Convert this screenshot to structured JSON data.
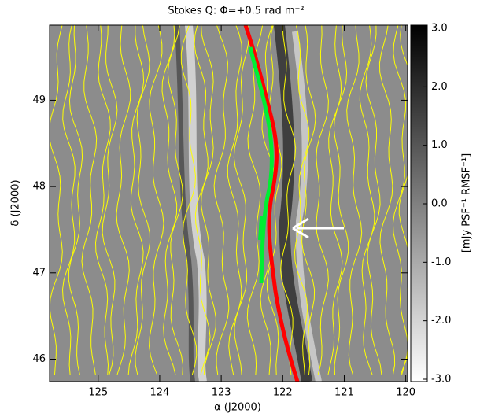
{
  "chart_data": {
    "type": "image",
    "title": "Stokes Q: Φ=+0.5 rad m⁻²",
    "xlabel": "α (J2000)",
    "ylabel": "δ (J2000)",
    "xlim": [
      125.79,
      119.97
    ],
    "xticks": [
      125,
      124,
      123,
      122,
      121,
      120
    ],
    "ylim": [
      45.74,
      49.87
    ],
    "yticks": [
      46,
      47,
      48,
      49
    ],
    "colorbar": {
      "label": "[mJy PSF⁻¹ RMSF⁻¹]",
      "zlim": [
        -3,
        3
      ],
      "zticks": [
        {
          "value": 3,
          "label": "3.0"
        },
        {
          "value": 2,
          "label": "2.0"
        },
        {
          "value": 1,
          "label": "1.0"
        },
        {
          "value": 0,
          "label": "0.0"
        },
        {
          "value": -1,
          "label": "-1.0"
        },
        {
          "value": -2,
          "label": "-2.0"
        },
        {
          "value": -3,
          "label": "-3.0"
        }
      ]
    }
  }
}
